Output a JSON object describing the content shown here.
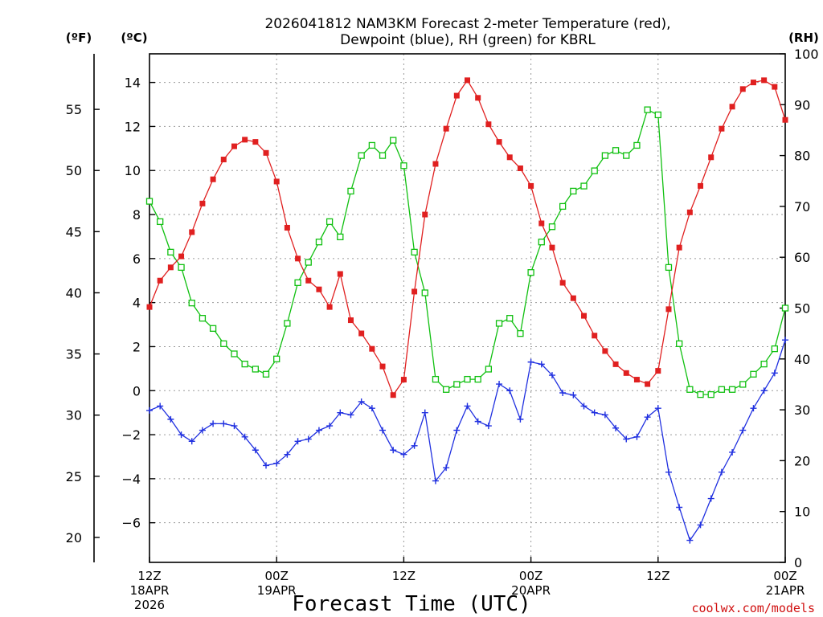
{
  "chart_data": {
    "type": "line",
    "title_line1": "2026041812 NAM3KM Forecast 2-meter Temperature (red),",
    "title_line2": "Dewpoint (blue), RH (green) for KBRL",
    "xlabel": "Forecast Time (UTC)",
    "credit": "coolwx.com/models",
    "units": {
      "fahrenheit": "(ºF)",
      "celsius": "(ºC)",
      "rh": "(RH)"
    },
    "x_range_hours": [
      0,
      60
    ],
    "x_ticks": [
      {
        "hour": 0,
        "line1": "12Z",
        "line2": "18APR",
        "line3": "2026"
      },
      {
        "hour": 12,
        "line1": "00Z",
        "line2": "19APR",
        "line3": ""
      },
      {
        "hour": 24,
        "line1": "12Z",
        "line2": "",
        "line3": ""
      },
      {
        "hour": 36,
        "line1": "00Z",
        "line2": "20APR",
        "line3": ""
      },
      {
        "hour": 48,
        "line1": "12Z",
        "line2": "",
        "line3": ""
      },
      {
        "hour": 60,
        "line1": "00Z",
        "line2": "21APR",
        "line3": ""
      }
    ],
    "celsius_axis": {
      "range": [
        -7.8,
        15.3
      ],
      "ticks": [
        -6,
        -4,
        -2,
        0,
        2,
        4,
        6,
        8,
        10,
        12,
        14
      ]
    },
    "fahrenheit_axis": {
      "ticks": [
        20,
        25,
        30,
        35,
        40,
        45,
        50,
        55
      ]
    },
    "rh_axis": {
      "range": [
        0,
        100
      ],
      "ticks": [
        0,
        10,
        20,
        30,
        40,
        50,
        60,
        70,
        80,
        90,
        100
      ]
    },
    "series": [
      {
        "name": "2-meter Temperature",
        "unit": "°C",
        "color": "#e02020",
        "marker": "filled-square",
        "values": [
          3.8,
          5.0,
          5.6,
          6.1,
          7.2,
          8.5,
          9.6,
          10.5,
          11.1,
          11.4,
          11.3,
          10.8,
          9.5,
          7.4,
          6.0,
          5.0,
          4.6,
          3.8,
          5.3,
          3.2,
          2.6,
          1.9,
          1.1,
          -0.2,
          0.5,
          4.5,
          8.0,
          10.3,
          11.9,
          13.4,
          14.1,
          13.3,
          12.1,
          11.3,
          10.6,
          10.1,
          9.3,
          7.6,
          6.5,
          4.9,
          4.2,
          3.4,
          2.5,
          1.8,
          1.2,
          0.8,
          0.5,
          0.3,
          0.9,
          3.7,
          6.5,
          8.1,
          9.3,
          10.6,
          11.9,
          12.9,
          13.7,
          14.0,
          14.1,
          13.8,
          12.3
        ]
      },
      {
        "name": "Dewpoint",
        "unit": "°C",
        "color": "#2030e0",
        "marker": "plus",
        "values": [
          -0.9,
          -0.7,
          -1.3,
          -2.0,
          -2.3,
          -1.8,
          -1.5,
          -1.5,
          -1.6,
          -2.1,
          -2.7,
          -3.4,
          -3.3,
          -2.9,
          -2.3,
          -2.2,
          -1.8,
          -1.6,
          -1.0,
          -1.1,
          -0.5,
          -0.8,
          -1.8,
          -2.7,
          -2.9,
          -2.5,
          -1.0,
          -4.1,
          -3.5,
          -1.8,
          -0.7,
          -1.4,
          -1.6,
          0.3,
          0.0,
          -1.3,
          1.3,
          1.2,
          0.7,
          -0.1,
          -0.2,
          -0.7,
          -1.0,
          -1.1,
          -1.7,
          -2.2,
          -2.1,
          -1.2,
          -0.8,
          -3.7,
          -5.3,
          -6.8,
          -6.1,
          -4.9,
          -3.7,
          -2.8,
          -1.8,
          -0.8,
          0.0,
          0.8,
          2.3
        ]
      },
      {
        "name": "RH",
        "unit": "%",
        "color": "#10c010",
        "marker": "open-square",
        "values": [
          71,
          67,
          61,
          58,
          51,
          48,
          46,
          43,
          41,
          39,
          38,
          37,
          40,
          47,
          55,
          59,
          63,
          67,
          64,
          73,
          80,
          82,
          80,
          83,
          78,
          61,
          53,
          36,
          34,
          35,
          36,
          36,
          38,
          47,
          48,
          45,
          57,
          63,
          66,
          70,
          73,
          74,
          77,
          80,
          81,
          80,
          82,
          89,
          88,
          58,
          43,
          34,
          33,
          33,
          34,
          34,
          35,
          37,
          39,
          42,
          50
        ]
      }
    ]
  }
}
